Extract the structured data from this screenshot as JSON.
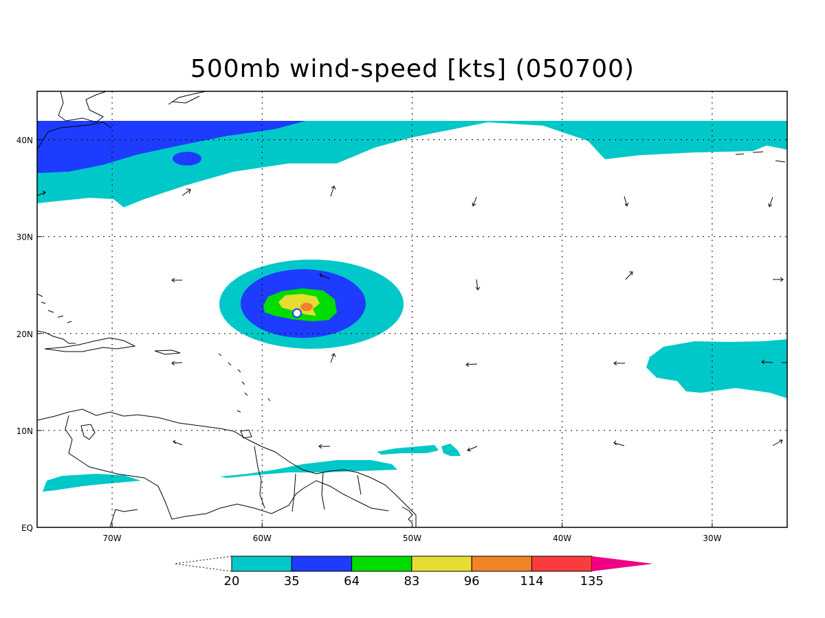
{
  "title": "500mb wind-speed [kts] (050700)",
  "map": {
    "lon_range": [
      -75,
      -25
    ],
    "lat_range": [
      0,
      45
    ],
    "lon_ticks": [
      {
        "value": -70,
        "label": "70W"
      },
      {
        "value": -60,
        "label": "60W"
      },
      {
        "value": -50,
        "label": "50W"
      },
      {
        "value": -40,
        "label": "40W"
      },
      {
        "value": -30,
        "label": "30W"
      }
    ],
    "lat_ticks": [
      {
        "value": 0,
        "label": "EQ"
      },
      {
        "value": 10,
        "label": "10N"
      },
      {
        "value": 20,
        "label": "20N"
      },
      {
        "value": 30,
        "label": "30N"
      },
      {
        "value": 40,
        "label": "40N"
      }
    ],
    "grid": "dotted"
  },
  "colorbar": {
    "levels": [
      "20",
      "35",
      "64",
      "83",
      "96",
      "114",
      "135"
    ],
    "colors": [
      "#00c8c8",
      "#1e3cff",
      "#00dc00",
      "#e6dc32",
      "#f08228",
      "#fa3c3c",
      "#f00082"
    ],
    "extend_low_color": "#ffffff"
  }
}
